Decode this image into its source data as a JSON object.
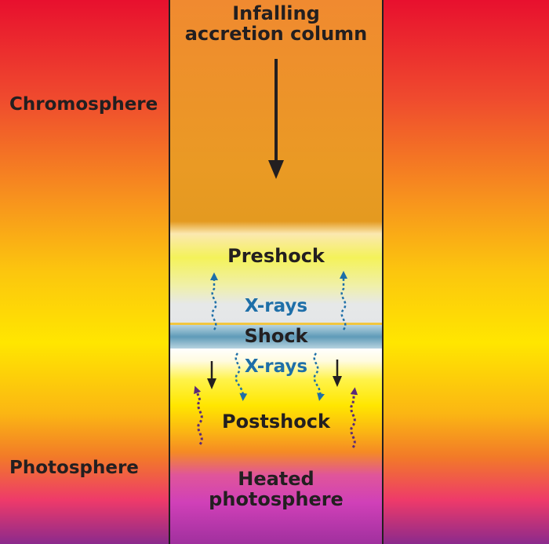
{
  "labels": {
    "chromosphere": "Chromosphere",
    "photosphere": "Photosphere",
    "column": "Infalling accretion column",
    "preshock": "Preshock",
    "xrays_upper": "X-rays",
    "shock": "Shock",
    "xrays_lower": "X-rays",
    "postshock": "Postshock",
    "heated": "Heated photosphere"
  },
  "colors": {
    "star_top": "#e8102e",
    "star_mid": "#ffe400",
    "star_bottom": "#8b2a8c",
    "column": "#f09030",
    "shock_band": "#7fb0c8",
    "xray_arrow": "#1e6fa8",
    "heat_arrow": "#5a2a78",
    "text": "#231f20",
    "xray_text": "#1e6fa8"
  }
}
